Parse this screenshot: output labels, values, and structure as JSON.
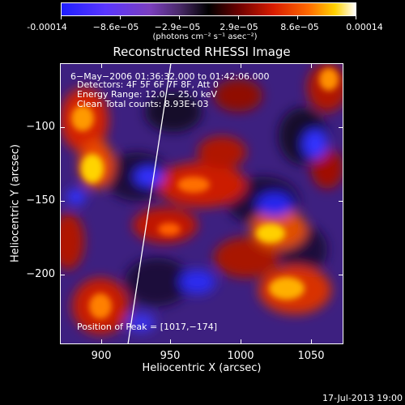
{
  "colorbar": {
    "labels": [
      "-0.00014",
      "−8.6e−05",
      "−2.9e−05",
      "2.9e−05",
      "8.6e−05",
      "0.00014"
    ],
    "unit": "(photons cm⁻² s⁻¹ asec⁻²)",
    "colors": [
      "#1f1fff",
      "#7b3fbf",
      "#000000",
      "#d91c00",
      "#ffd200",
      "#ffffff"
    ]
  },
  "plot": {
    "title": "Reconstructed RHESSI Image",
    "info_line1": "6−May−2006 01:36:32.000 to 01:42:06.000",
    "info_line2": "Detectors: 4F 5F 6F 7F 8F, Att 0",
    "info_line3": "Energy Range: 12.0 − 25.0 keV",
    "info_line4": "Clean    Total counts: 8.93E+03",
    "peak_text": "Position of Peak = [1017,−174]",
    "xlabel": "Heliocentric X (arcsec)",
    "ylabel": "Heliocentric Y (arcsec)",
    "xticks": [
      "900",
      "950",
      "1000",
      "1050"
    ],
    "yticks": [
      "−100",
      "−150",
      "−200"
    ]
  },
  "footer": {
    "timestamp": "17-Jul-2013 19:00"
  }
}
